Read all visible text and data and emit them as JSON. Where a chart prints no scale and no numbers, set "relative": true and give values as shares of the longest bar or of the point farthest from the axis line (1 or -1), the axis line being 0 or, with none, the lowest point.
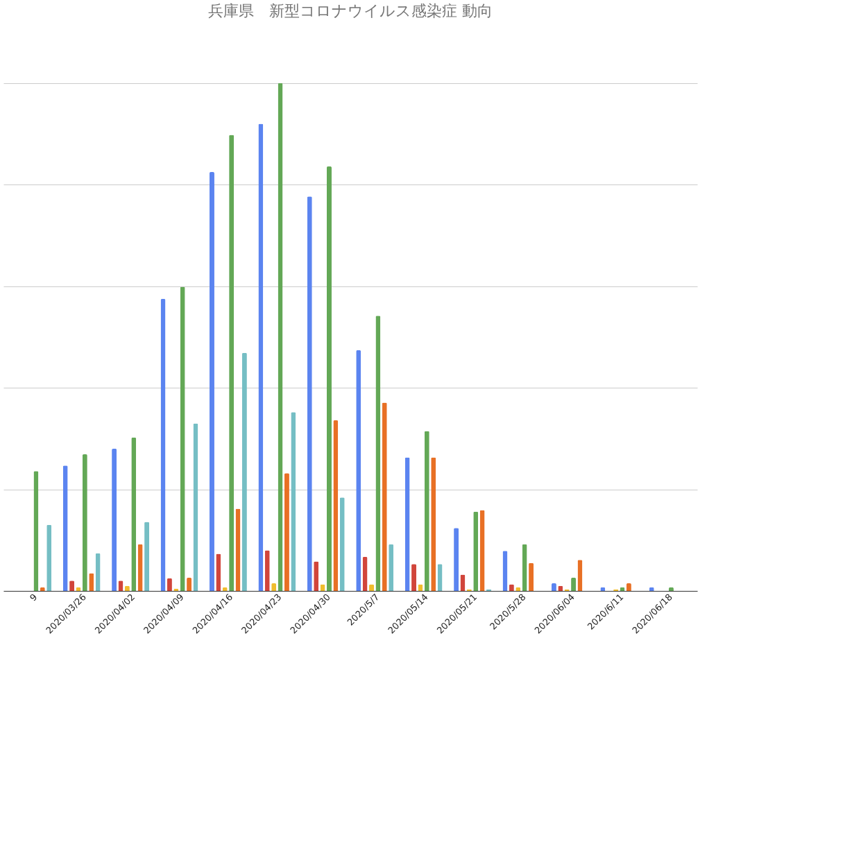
{
  "chart_data": {
    "type": "bar",
    "title": "兵庫県　新型コロナウイルス感染症 動向",
    "relative": true,
    "grid": "y",
    "categories": [
      "9",
      "2020/03/26",
      "2020/04/02",
      "2020/04/09",
      "2020/04/16",
      "2020/04/23",
      "2020/04/30",
      "2020/5/7",
      "2020/05/14",
      "2020/05/21",
      "2020/5/28",
      "2020/06/04",
      "2020/6/11",
      "2020/06/18"
    ],
    "series": [
      {
        "color": "#5b84f0",
        "values": [
          null,
          0.247,
          0.28,
          0.575,
          0.825,
          0.92,
          0.777,
          0.474,
          0.263,
          0.124,
          0.079,
          0.015,
          0.007,
          0.007
        ]
      },
      {
        "color": "#d1453b",
        "values": [
          null,
          0.02,
          0.02,
          0.025,
          0.073,
          0.08,
          0.058,
          0.067,
          0.053,
          0.032,
          0.013,
          0.01,
          0,
          0
        ]
      },
      {
        "color": "#f0bd2e",
        "values": [
          null,
          0.007,
          0.01,
          0.004,
          0.007,
          0.015,
          0.013,
          0.013,
          0.013,
          0.003,
          0.007,
          0.003,
          0.003,
          0
        ]
      },
      {
        "color": "#63a856",
        "values": [
          0.236,
          0.269,
          0.302,
          0.599,
          0.898,
          1.0,
          0.836,
          0.542,
          0.315,
          0.156,
          0.092,
          0.026,
          0.007,
          0.007
        ]
      },
      {
        "color": "#e87025",
        "values": [
          0.007,
          0.035,
          0.092,
          0.026,
          0.162,
          0.232,
          0.336,
          0.371,
          0.263,
          0.159,
          0.055,
          0.061,
          0.015,
          0
        ]
      },
      {
        "color": "#75bec4",
        "values": [
          0.13,
          0.074,
          0.136,
          0.33,
          0.469,
          0.352,
          0.184,
          0.092,
          0.053,
          0.003,
          0,
          0,
          0,
          0
        ]
      }
    ]
  }
}
